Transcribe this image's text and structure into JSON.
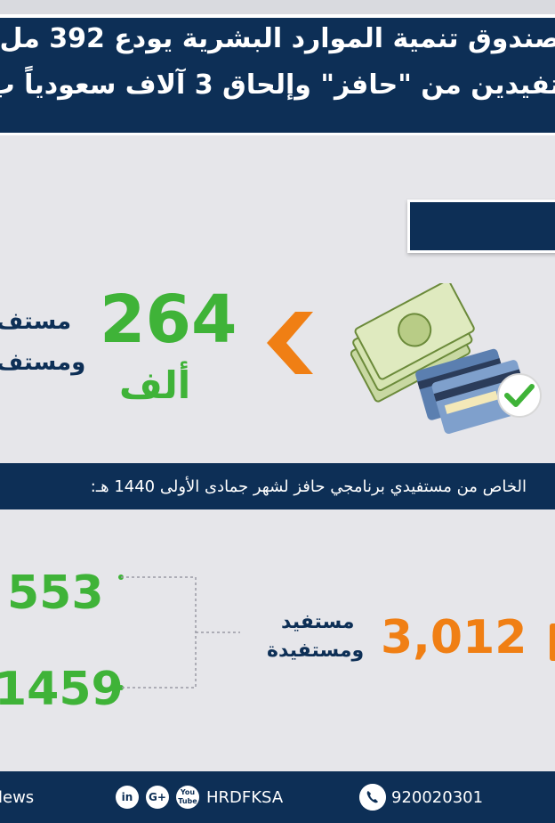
{
  "header": {
    "line1": "صندوق تنمية الموارد البشرية يودع 392 مل",
    "line2": "تفيدين من \"حافز\" وإلحاق 3 آلاف سعودياً ب"
  },
  "stat_main": {
    "number": "264",
    "unit": "ألف",
    "label1": "مستف",
    "label2": "ومستف"
  },
  "banner": {
    "text": "الخاص من مستفيدي برنامجي حافز لشهر جمادى الأولى 1440 هـ:"
  },
  "breakdown": {
    "total": "3,012",
    "total_label1": "مستفيد",
    "total_label2": "ومستفيدة",
    "value_a": "553",
    "value_b": "1459"
  },
  "footer": {
    "news": "lews",
    "social": [
      "in",
      "G+",
      "You Tube"
    ],
    "handle": "HRDFKSA",
    "phone": "920020301"
  },
  "colors": {
    "navy": "#0d2f56",
    "green": "#3fb338",
    "orange": "#f07f14",
    "background": "#e6e6ea"
  },
  "icons": [
    "chevron-left-icon",
    "money-cards-icon",
    "checkmark-icon",
    "phone-icon",
    "linkedin-icon",
    "google-plus-icon",
    "youtube-icon"
  ]
}
